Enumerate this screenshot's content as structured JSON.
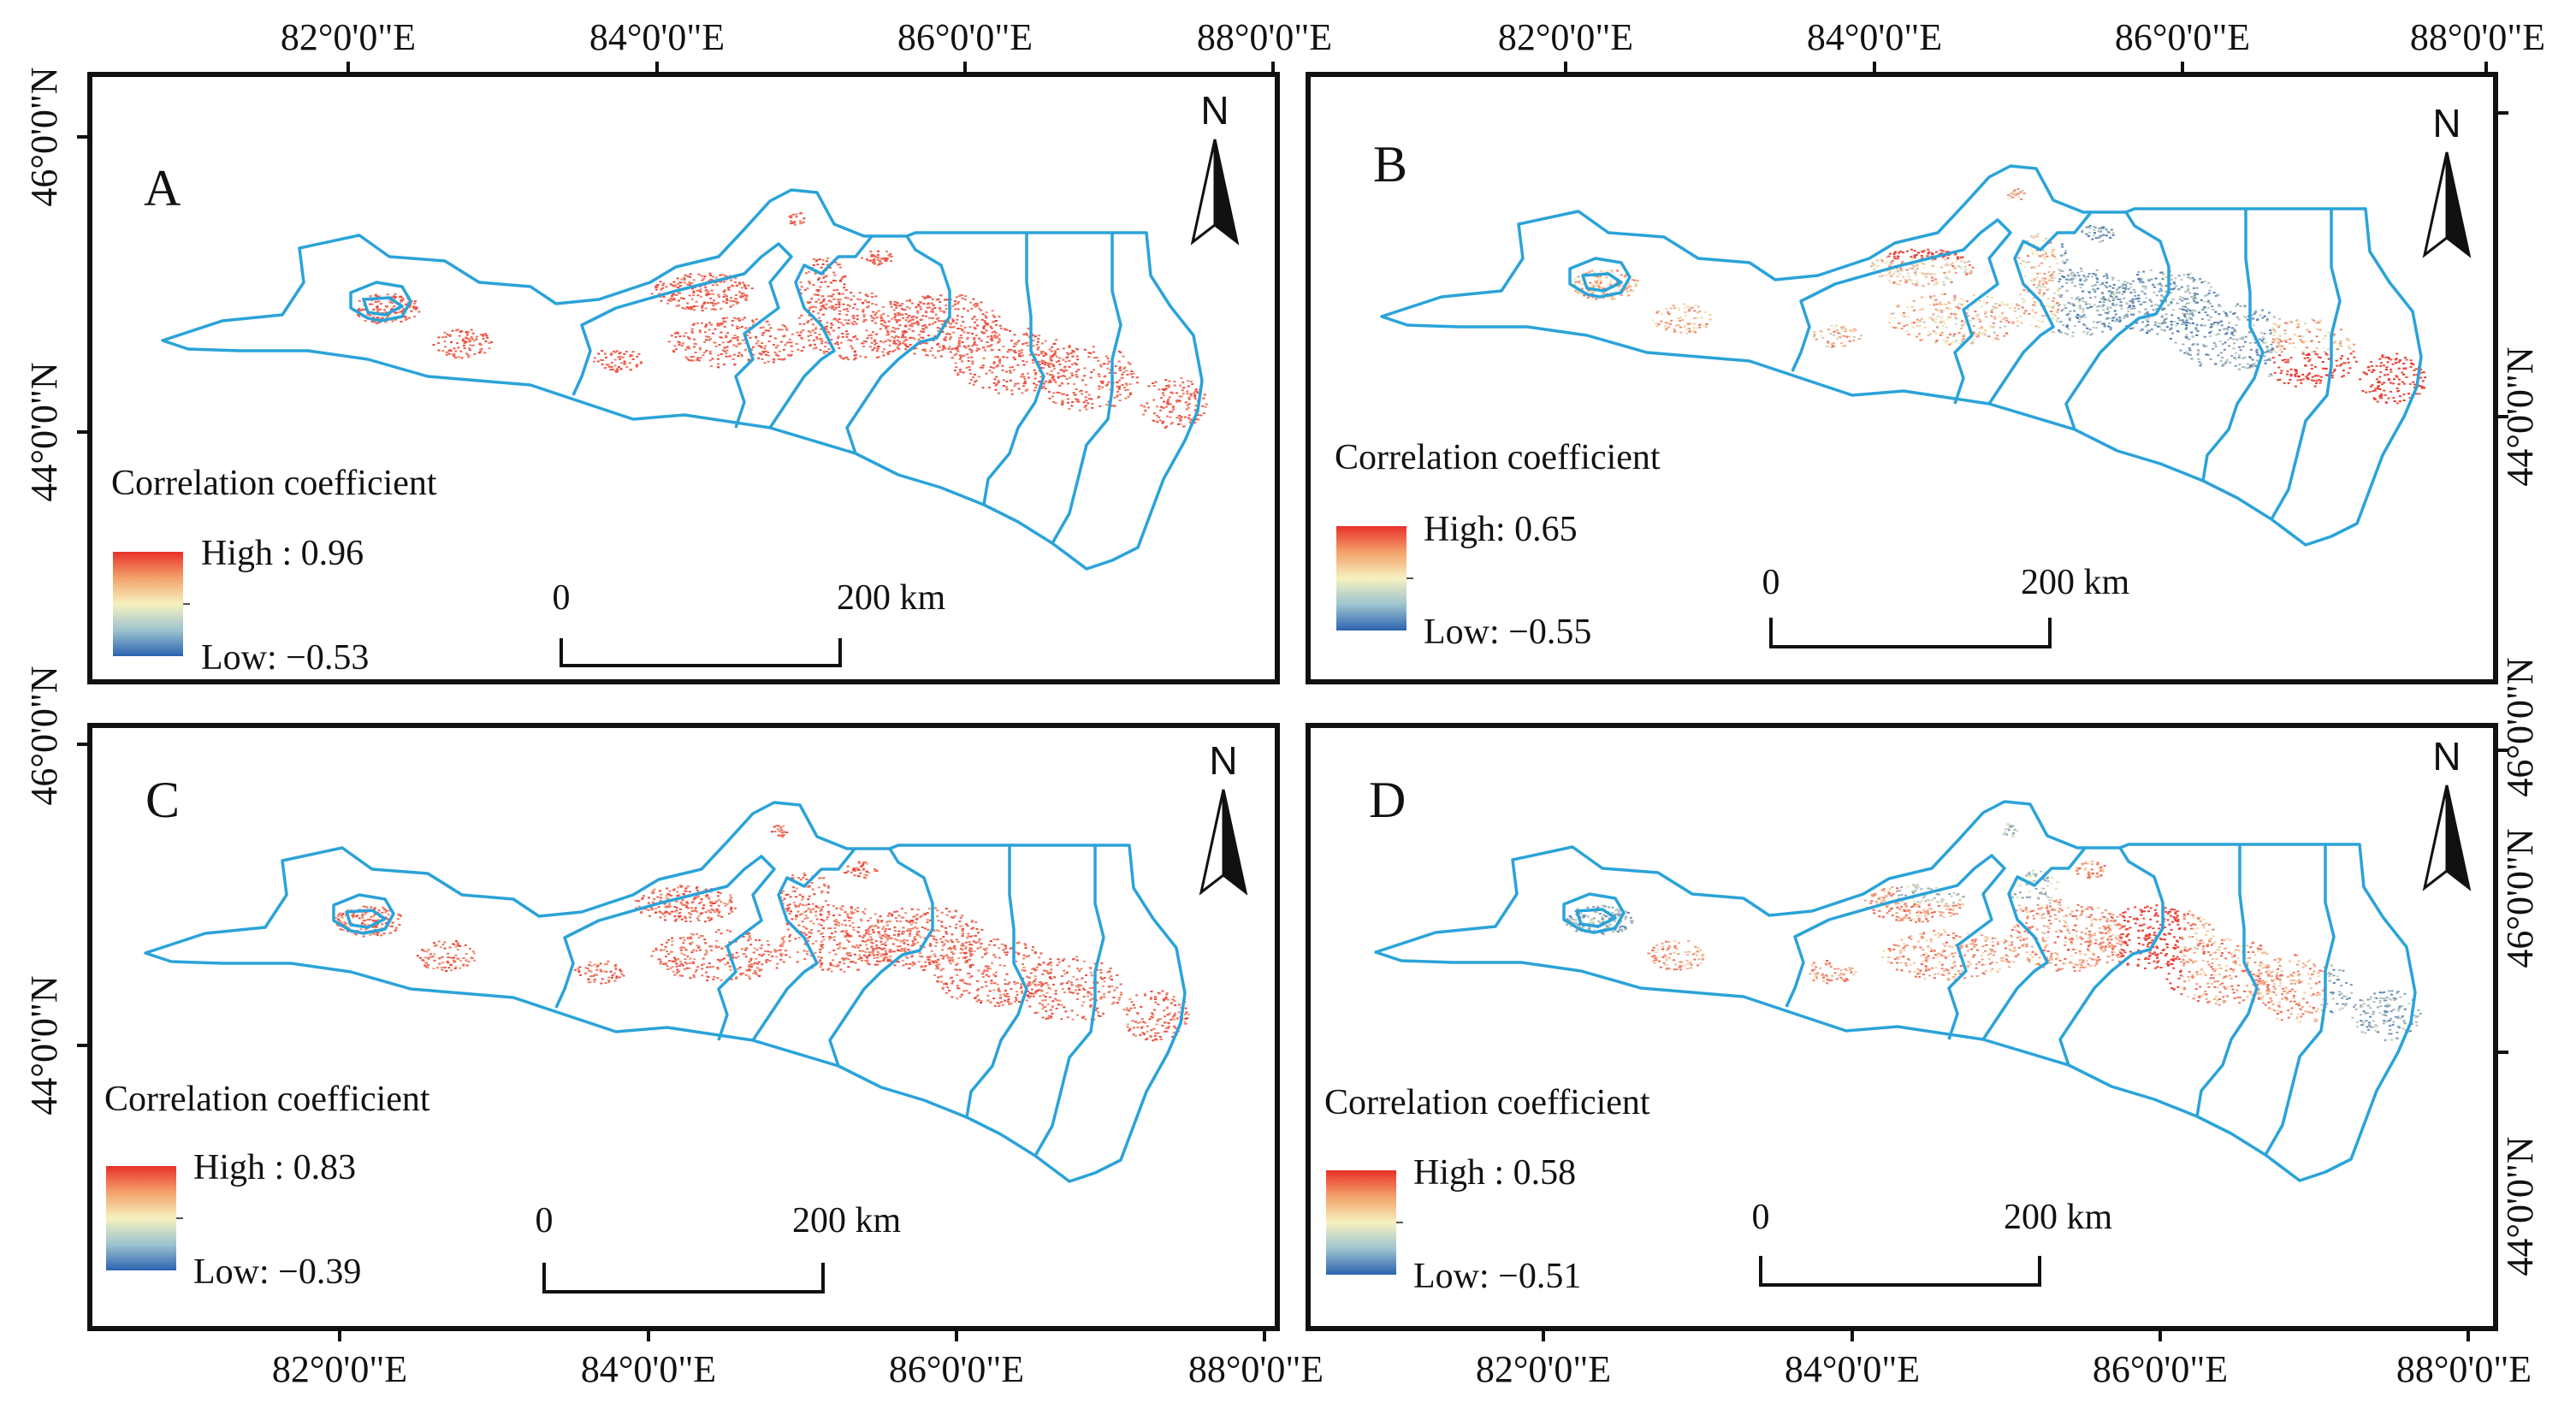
{
  "figure": {
    "lon_ticks": [
      "82°0'0\"E",
      "84°0'0\"E",
      "86°0'0\"E",
      "88°0'0\"E"
    ],
    "lat_ticks": [
      "46°0'0\"N",
      "44°0'0\"N"
    ],
    "legend_title": "Correlation coefficient",
    "scale_zero": "0",
    "scale_end": "200 km",
    "north": "N",
    "colors": {
      "high": "#e8302a",
      "mid": "#f6f1bf",
      "low": "#2b63b0",
      "boundary": "#2aa3d8",
      "frame": "#111111"
    }
  },
  "panels": [
    {
      "id": "A",
      "letter": "A",
      "high_label": "High : 0.96",
      "low_label": "Low: −0.53",
      "high": 0.96,
      "low": -0.53
    },
    {
      "id": "B",
      "letter": "B",
      "high_label": "High: 0.65",
      "low_label": "Low: −0.55",
      "high": 0.65,
      "low": -0.55
    },
    {
      "id": "C",
      "letter": "C",
      "high_label": "High : 0.83",
      "low_label": "Low: −0.39",
      "high": 0.83,
      "low": -0.39
    },
    {
      "id": "D",
      "letter": "D",
      "high_label": "High : 0.58",
      "low_label": "Low: −0.51",
      "high": 0.58,
      "low": -0.51
    }
  ]
}
